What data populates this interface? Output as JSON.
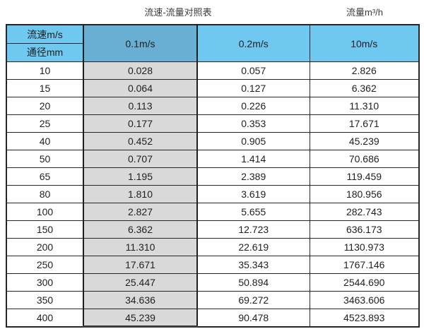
{
  "page": {
    "title_left": "流速-流量对照表",
    "title_right": "流量m³/h"
  },
  "table": {
    "corner": {
      "top": "流速m/s",
      "bottom": "通径mm"
    },
    "velocity_columns": [
      "0.1m/s",
      "0.2m/s",
      "10m/s"
    ],
    "rows": [
      {
        "dn": "10",
        "values": [
          "0.028",
          "0.057",
          "2.826"
        ]
      },
      {
        "dn": "15",
        "values": [
          "0.064",
          "0.127",
          "6.362"
        ]
      },
      {
        "dn": "20",
        "values": [
          "0.113",
          "0.226",
          "11.310"
        ]
      },
      {
        "dn": "25",
        "values": [
          "0.177",
          "0.353",
          "17.671"
        ]
      },
      {
        "dn": "40",
        "values": [
          "0.452",
          "0.905",
          "45.239"
        ]
      },
      {
        "dn": "50",
        "values": [
          "0.707",
          "1.414",
          "70.686"
        ]
      },
      {
        "dn": "65",
        "values": [
          "1.195",
          "2.389",
          "119.459"
        ]
      },
      {
        "dn": "80",
        "values": [
          "1.810",
          "3.619",
          "180.956"
        ]
      },
      {
        "dn": "100",
        "values": [
          "2.827",
          "5.655",
          "282.743"
        ]
      },
      {
        "dn": "150",
        "values": [
          "6.362",
          "12.723",
          "636.173"
        ]
      },
      {
        "dn": "200",
        "values": [
          "11.310",
          "22.619",
          "1130.973"
        ]
      },
      {
        "dn": "250",
        "values": [
          "17.671",
          "35.343",
          "1767.146"
        ]
      },
      {
        "dn": "300",
        "values": [
          "25.447",
          "50.894",
          "2544.690"
        ]
      },
      {
        "dn": "350",
        "values": [
          "34.636",
          "69.272",
          "3463.606"
        ]
      },
      {
        "dn": "400",
        "values": [
          "45.239",
          "90.478",
          "4523.893"
        ]
      }
    ]
  },
  "colors": {
    "header_light_blue": "#6FC8F0",
    "header_dark_blue": "#68AFD3",
    "highlight_column_gray": "#D9D9D9",
    "border_dark": "#262626",
    "text": "#1F1F1F"
  },
  "chart_data": {
    "type": "table",
    "title": "流速-流量对照表",
    "unit_note": "流量m³/h",
    "column_header_label": "流速m/s",
    "row_header_label": "通径mm",
    "columns": [
      "0.1m/s",
      "0.2m/s",
      "10m/s"
    ],
    "diameters_mm": [
      10,
      15,
      20,
      25,
      40,
      50,
      65,
      80,
      100,
      150,
      200,
      250,
      300,
      350,
      400
    ],
    "series": [
      {
        "name": "0.1m/s",
        "values": [
          0.028,
          0.064,
          0.113,
          0.177,
          0.452,
          0.707,
          1.195,
          1.81,
          2.827,
          6.362,
          11.31,
          17.671,
          25.447,
          34.636,
          45.239
        ]
      },
      {
        "name": "0.2m/s",
        "values": [
          0.057,
          0.127,
          0.226,
          0.353,
          0.905,
          1.414,
          2.389,
          3.619,
          5.655,
          12.723,
          22.619,
          35.343,
          50.894,
          69.272,
          90.478
        ]
      },
      {
        "name": "10m/s",
        "values": [
          2.826,
          6.362,
          11.31,
          17.671,
          45.239,
          70.686,
          119.459,
          180.956,
          282.743,
          636.173,
          1130.973,
          1767.146,
          2544.69,
          3463.606,
          4523.893
        ]
      }
    ]
  }
}
